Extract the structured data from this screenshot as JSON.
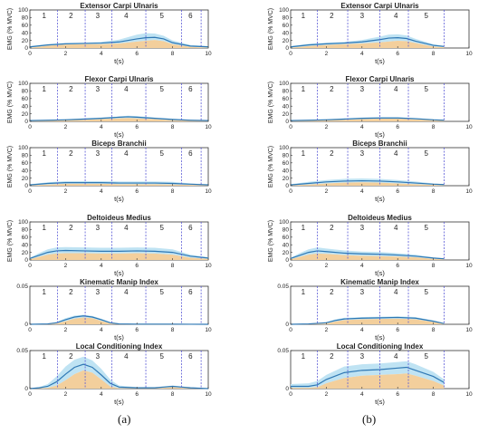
{
  "colors": {
    "mean_line": "#2f78b4",
    "band_outer": "#bfe3f3",
    "band_inner": "#f3cf9c",
    "phase_line": "#5a5ad6",
    "axis": "#333333",
    "text": "#222222"
  },
  "captions": [
    "(a)",
    "(b)"
  ],
  "chart_data": [
    {
      "type": "area",
      "panel": "a",
      "title": "Extensor Carpi Ulnaris",
      "xlabel": "t(s)",
      "ylabel": "EMG (% MVC)",
      "xlim": [
        0,
        10
      ],
      "ylim": [
        0,
        100
      ],
      "xticks": [
        0,
        2,
        4,
        6,
        8,
        10
      ],
      "yticks": [
        0,
        20,
        40,
        60,
        80,
        100
      ],
      "phase_boundaries": [
        1.55,
        3.1,
        4.6,
        6.5,
        8.5,
        9.6
      ],
      "phase_labels": [
        "1",
        "2",
        "3",
        "4",
        "5",
        "6"
      ],
      "phase_label_x": [
        0.8,
        2.3,
        3.8,
        5.4,
        7.4,
        9.0
      ],
      "x": [
        0,
        1,
        2,
        3,
        4,
        5,
        6,
        6.5,
        7,
        7.5,
        8,
        9,
        10
      ],
      "mean": [
        3,
        8,
        11,
        12,
        13,
        16,
        24,
        27,
        28,
        24,
        14,
        5,
        3
      ],
      "upper": [
        5,
        10,
        13,
        14,
        16,
        22,
        35,
        39,
        38,
        32,
        20,
        8,
        5
      ],
      "lower": [
        1,
        6,
        9,
        10,
        10,
        12,
        17,
        19,
        21,
        18,
        10,
        3,
        1
      ]
    },
    {
      "type": "area",
      "panel": "b",
      "title": "Extensor Carpi Ulnaris",
      "xlabel": "t(s)",
      "ylabel": "EMG (% MVC)",
      "xlim": [
        0,
        10
      ],
      "ylim": [
        0,
        100
      ],
      "xticks": [
        0,
        2,
        4,
        6,
        8,
        10
      ],
      "yticks": [
        0,
        20,
        40,
        60,
        80,
        100
      ],
      "phase_boundaries": [
        1.5,
        3.2,
        5.0,
        6.6,
        8.6
      ],
      "phase_labels": [
        "1",
        "2",
        "3",
        "4",
        "5"
      ],
      "phase_label_x": [
        0.7,
        2.3,
        4.0,
        5.9,
        7.6
      ],
      "x": [
        0,
        1,
        2,
        3,
        4,
        5,
        5.5,
        6,
        6.5,
        7,
        8,
        8.6
      ],
      "mean": [
        3,
        8,
        11,
        13,
        16,
        22,
        26,
        27,
        25,
        18,
        7,
        4
      ],
      "upper": [
        5,
        11,
        14,
        16,
        21,
        30,
        35,
        36,
        33,
        24,
        10,
        6
      ],
      "lower": [
        1,
        5,
        8,
        10,
        12,
        15,
        17,
        19,
        18,
        13,
        4,
        2
      ]
    },
    {
      "type": "area",
      "panel": "a",
      "title": "Flexor Carpi Ulnaris",
      "xlabel": "t(s)",
      "ylabel": "EMG (% MVC)",
      "xlim": [
        0,
        10
      ],
      "ylim": [
        0,
        100
      ],
      "xticks": [
        0,
        2,
        4,
        6,
        8,
        10
      ],
      "yticks": [
        0,
        20,
        40,
        60,
        80,
        100
      ],
      "phase_boundaries": [
        1.55,
        3.1,
        4.6,
        6.5,
        8.5,
        9.6
      ],
      "phase_labels": [
        "1",
        "2",
        "3",
        "4",
        "5",
        "6"
      ],
      "phase_label_x": [
        0.8,
        2.3,
        3.8,
        5.4,
        7.4,
        9.0
      ],
      "x": [
        0,
        1,
        2,
        3,
        4,
        5,
        5.5,
        6,
        7,
        8,
        9,
        10
      ],
      "mean": [
        2,
        3,
        4,
        6,
        8,
        11,
        12,
        11,
        8,
        5,
        3,
        2
      ],
      "upper": [
        3,
        4,
        6,
        8,
        10,
        13,
        15,
        14,
        10,
        7,
        4,
        3
      ],
      "lower": [
        1,
        2,
        3,
        4,
        6,
        8,
        9,
        8,
        6,
        3,
        2,
        1
      ]
    },
    {
      "type": "area",
      "panel": "b",
      "title": "Flexor Carpi Ulnaris",
      "xlabel": "t(s)",
      "ylabel": "EMG (% MVC)",
      "xlim": [
        0,
        10
      ],
      "ylim": [
        0,
        100
      ],
      "xticks": [
        0,
        2,
        4,
        6,
        8,
        10
      ],
      "yticks": [
        0,
        20,
        40,
        60,
        80,
        100
      ],
      "phase_boundaries": [
        1.5,
        3.2,
        5.0,
        6.6,
        8.6
      ],
      "phase_labels": [
        "1",
        "2",
        "3",
        "4",
        "5"
      ],
      "phase_label_x": [
        0.7,
        2.3,
        4.0,
        5.9,
        7.6
      ],
      "x": [
        0,
        1,
        2,
        3,
        4,
        5,
        6,
        7,
        8,
        8.6
      ],
      "mean": [
        2,
        3,
        4,
        6,
        8,
        9,
        9,
        7,
        4,
        3
      ],
      "upper": [
        3,
        4,
        6,
        8,
        10,
        11,
        11,
        9,
        6,
        4
      ],
      "lower": [
        1,
        2,
        3,
        4,
        6,
        7,
        7,
        5,
        3,
        2
      ]
    },
    {
      "type": "area",
      "panel": "a",
      "title": "Biceps Branchii",
      "xlabel": "t(s)",
      "ylabel": "EMG (% MVC)",
      "xlim": [
        0,
        10
      ],
      "ylim": [
        0,
        100
      ],
      "xticks": [
        0,
        2,
        4,
        6,
        8,
        10
      ],
      "yticks": [
        0,
        20,
        40,
        60,
        80,
        100
      ],
      "phase_boundaries": [
        1.55,
        3.1,
        4.6,
        6.5,
        8.5,
        9.6
      ],
      "phase_labels": [
        "1",
        "2",
        "3",
        "4",
        "5",
        "6"
      ],
      "phase_label_x": [
        0.8,
        2.3,
        3.8,
        5.4,
        7.4,
        9.0
      ],
      "x": [
        0,
        1,
        2,
        3,
        4,
        5,
        6,
        7,
        8,
        9,
        10
      ],
      "mean": [
        2,
        6,
        8,
        8,
        8,
        7,
        7,
        7,
        6,
        4,
        2
      ],
      "upper": [
        4,
        9,
        12,
        12,
        12,
        11,
        11,
        11,
        10,
        6,
        4
      ],
      "lower": [
        1,
        3,
        5,
        5,
        5,
        4,
        4,
        4,
        3,
        2,
        1
      ]
    },
    {
      "type": "area",
      "panel": "b",
      "title": "Biceps Branchii",
      "xlabel": "t(s)",
      "ylabel": "EMG (% MVC)",
      "xlim": [
        0,
        10
      ],
      "ylim": [
        0,
        100
      ],
      "xticks": [
        0,
        2,
        4,
        6,
        8,
        10
      ],
      "yticks": [
        0,
        20,
        40,
        60,
        80,
        100
      ],
      "phase_boundaries": [
        1.5,
        3.2,
        5.0,
        6.6,
        8.6
      ],
      "phase_labels": [
        "1",
        "2",
        "3",
        "4",
        "5"
      ],
      "phase_label_x": [
        0.7,
        2.3,
        4.0,
        5.9,
        7.6
      ],
      "x": [
        0,
        1,
        2,
        3,
        4,
        5,
        6,
        7,
        8,
        8.6
      ],
      "mean": [
        2,
        6,
        10,
        12,
        13,
        12,
        10,
        7,
        4,
        3
      ],
      "upper": [
        4,
        10,
        15,
        18,
        19,
        18,
        15,
        11,
        6,
        4
      ],
      "lower": [
        1,
        3,
        6,
        8,
        9,
        8,
        6,
        4,
        2,
        1
      ]
    },
    {
      "type": "area",
      "panel": "a",
      "title": "Deltoideus Medius",
      "xlabel": "t(s)",
      "ylabel": "EMG (% MVC)",
      "xlim": [
        0,
        10
      ],
      "ylim": [
        0,
        100
      ],
      "xticks": [
        0,
        2,
        4,
        6,
        8,
        10
      ],
      "yticks": [
        0,
        20,
        40,
        60,
        80,
        100
      ],
      "phase_boundaries": [
        1.55,
        3.1,
        4.6,
        6.5,
        8.5,
        9.6
      ],
      "phase_labels": [
        "1",
        "2",
        "3",
        "4",
        "5",
        "6"
      ],
      "phase_label_x": [
        0.8,
        2.3,
        3.8,
        5.4,
        7.4,
        9.0
      ],
      "x": [
        0,
        0.5,
        1,
        1.5,
        2,
        3,
        4,
        5,
        6,
        7,
        8,
        9,
        10
      ],
      "mean": [
        4,
        12,
        20,
        24,
        25,
        24,
        23,
        23,
        24,
        23,
        20,
        10,
        5
      ],
      "upper": [
        6,
        18,
        28,
        33,
        34,
        33,
        32,
        32,
        33,
        32,
        28,
        14,
        7
      ],
      "lower": [
        2,
        8,
        14,
        17,
        18,
        18,
        17,
        17,
        18,
        17,
        14,
        6,
        3
      ]
    },
    {
      "type": "area",
      "panel": "b",
      "title": "Deltoideus Medius",
      "xlabel": "t(s)",
      "ylabel": "EMG (% MVC)",
      "xlim": [
        0,
        10
      ],
      "ylim": [
        0,
        100
      ],
      "xticks": [
        0,
        2,
        4,
        6,
        8,
        10
      ],
      "yticks": [
        0,
        20,
        40,
        60,
        80,
        100
      ],
      "phase_boundaries": [
        1.5,
        3.2,
        5.0,
        6.6,
        8.6
      ],
      "phase_labels": [
        "1",
        "2",
        "3",
        "4",
        "5"
      ],
      "phase_label_x": [
        0.7,
        2.3,
        4.0,
        5.9,
        7.6
      ],
      "x": [
        0,
        0.5,
        1,
        1.5,
        2,
        3,
        4,
        5,
        6,
        7,
        8,
        8.6
      ],
      "mean": [
        4,
        12,
        20,
        24,
        22,
        18,
        16,
        15,
        13,
        10,
        5,
        3
      ],
      "upper": [
        6,
        18,
        28,
        33,
        30,
        25,
        22,
        21,
        18,
        14,
        7,
        4
      ],
      "lower": [
        2,
        8,
        14,
        17,
        16,
        13,
        11,
        10,
        9,
        7,
        3,
        2
      ]
    },
    {
      "type": "area",
      "panel": "a",
      "title": "Kinematic Manip Index",
      "xlabel": "t(s)",
      "ylabel": "",
      "xlim": [
        0,
        10
      ],
      "ylim": [
        0,
        0.05
      ],
      "xticks": [
        0,
        2,
        4,
        6,
        8,
        10
      ],
      "yticks": [
        0,
        0.05
      ],
      "phase_boundaries": [
        1.55,
        3.1,
        4.6,
        6.5,
        8.5,
        9.6
      ],
      "phase_labels": [
        "1",
        "2",
        "3",
        "4",
        "5",
        "6"
      ],
      "phase_label_x": [
        0.8,
        2.3,
        3.8,
        5.4,
        7.4,
        9.0
      ],
      "x": [
        0,
        1,
        1.5,
        2,
        2.5,
        3,
        3.5,
        4,
        4.5,
        5,
        6,
        7,
        8,
        9,
        10
      ],
      "mean": [
        0,
        0.0005,
        0.002,
        0.006,
        0.0095,
        0.011,
        0.0095,
        0.006,
        0.002,
        0.0005,
        0.0002,
        0.0002,
        0.0002,
        0.0001,
        0
      ],
      "upper": [
        0,
        0.0008,
        0.003,
        0.008,
        0.0115,
        0.0125,
        0.011,
        0.0075,
        0.003,
        0.001,
        0.0004,
        0.0004,
        0.0004,
        0.0002,
        0
      ],
      "lower": [
        0,
        0.0002,
        0.001,
        0.004,
        0.0075,
        0.009,
        0.008,
        0.0045,
        0.001,
        0.0002,
        0.0001,
        0.0001,
        0.0001,
        0,
        0
      ]
    },
    {
      "type": "area",
      "panel": "b",
      "title": "Kinematic Manip Index",
      "xlabel": "t(s)",
      "ylabel": "",
      "xlim": [
        0,
        10
      ],
      "ylim": [
        0,
        0.05
      ],
      "xticks": [
        0,
        2,
        4,
        6,
        8,
        10
      ],
      "yticks": [
        0,
        0.05
      ],
      "phase_boundaries": [
        1.5,
        3.2,
        5.0,
        6.6,
        8.6
      ],
      "phase_labels": [
        "1",
        "2",
        "3",
        "4",
        "5"
      ],
      "phase_label_x": [
        0.7,
        2.3,
        4.0,
        5.9,
        7.6
      ],
      "x": [
        0,
        1,
        2,
        2.5,
        3,
        4,
        5,
        6,
        7,
        8,
        8.6
      ],
      "mean": [
        0,
        0.0005,
        0.002,
        0.005,
        0.007,
        0.008,
        0.0085,
        0.009,
        0.008,
        0.004,
        0.001
      ],
      "upper": [
        0,
        0.0008,
        0.003,
        0.0065,
        0.0085,
        0.0095,
        0.01,
        0.0105,
        0.0095,
        0.005,
        0.0015
      ],
      "lower": [
        0,
        0.0002,
        0.001,
        0.0035,
        0.0055,
        0.0065,
        0.007,
        0.0075,
        0.0065,
        0.003,
        0.0005
      ]
    },
    {
      "type": "area",
      "panel": "a",
      "title": "Local Conditioning Index",
      "xlabel": "t(s)",
      "ylabel": "",
      "xlim": [
        0,
        10
      ],
      "ylim": [
        0,
        0.05
      ],
      "xticks": [
        0,
        2,
        4,
        6,
        8,
        10
      ],
      "yticks": [
        0,
        0.05
      ],
      "phase_boundaries": [
        1.55,
        3.1,
        4.6,
        6.5,
        8.5,
        9.6
      ],
      "phase_labels": [
        "1",
        "2",
        "3",
        "4",
        "5",
        "6"
      ],
      "phase_label_x": [
        0.8,
        2.3,
        3.8,
        5.4,
        7.4,
        9.0
      ],
      "x": [
        0,
        0.5,
        1,
        1.5,
        2,
        2.5,
        3,
        3.5,
        4,
        4.5,
        5,
        6,
        7,
        7.5,
        8,
        8.5,
        9,
        10
      ],
      "mean": [
        0,
        0.001,
        0.003,
        0.009,
        0.019,
        0.028,
        0.032,
        0.028,
        0.018,
        0.007,
        0.002,
        0.001,
        0.001,
        0.002,
        0.003,
        0.002,
        0.001,
        0
      ],
      "upper": [
        0,
        0.002,
        0.006,
        0.016,
        0.029,
        0.038,
        0.042,
        0.037,
        0.026,
        0.012,
        0.004,
        0.002,
        0.002,
        0.003,
        0.004,
        0.003,
        0.002,
        0
      ],
      "lower": [
        0,
        0.0003,
        0.001,
        0.004,
        0.011,
        0.019,
        0.024,
        0.021,
        0.012,
        0.003,
        0.0005,
        0.0003,
        0.0003,
        0.001,
        0.002,
        0.001,
        0.0003,
        0
      ]
    },
    {
      "type": "area",
      "panel": "b",
      "title": "Local Conditioning Index",
      "xlabel": "t(s)",
      "ylabel": "",
      "xlim": [
        0,
        10
      ],
      "ylim": [
        0,
        0.05
      ],
      "xticks": [
        0,
        2,
        4,
        6,
        8,
        10
      ],
      "yticks": [
        0,
        0.05
      ],
      "phase_boundaries": [
        1.5,
        3.2,
        5.0,
        6.6,
        8.6
      ],
      "phase_labels": [
        "1",
        "2",
        "3",
        "4",
        "5"
      ],
      "phase_label_x": [
        0.7,
        2.3,
        4.0,
        5.9,
        7.6
      ],
      "x": [
        0,
        1,
        1.5,
        2,
        3,
        4,
        5,
        6,
        6.5,
        7,
        8,
        8.6
      ],
      "mean": [
        0.003,
        0.003,
        0.005,
        0.012,
        0.021,
        0.024,
        0.025,
        0.027,
        0.028,
        0.024,
        0.016,
        0.008
      ],
      "upper": [
        0.006,
        0.007,
        0.01,
        0.018,
        0.029,
        0.032,
        0.033,
        0.035,
        0.036,
        0.032,
        0.022,
        0.012
      ],
      "lower": [
        0.001,
        0.001,
        0.002,
        0.007,
        0.014,
        0.017,
        0.018,
        0.019,
        0.02,
        0.017,
        0.01,
        0.004
      ]
    }
  ]
}
